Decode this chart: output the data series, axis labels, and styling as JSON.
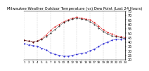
{
  "title": "Milwaukee Weather Outdoor Temperature (vs) Dew Point (Last 24 Hours)",
  "bg_color": "#ffffff",
  "plot_bg": "#ffffff",
  "grid_color": "#aaaaaa",
  "ylim": [
    20,
    75
  ],
  "yticks": [
    20,
    25,
    30,
    35,
    40,
    45,
    50,
    55,
    60,
    65,
    70,
    75
  ],
  "ylabel_fontsize": 3.5,
  "xlabel_fontsize": 3.0,
  "title_fontsize": 3.8,
  "temp_color": "#dd0000",
  "dew_color": "#0000cc",
  "outdoor_color": "#000000",
  "x_hours": [
    0,
    1,
    2,
    3,
    4,
    5,
    6,
    7,
    8,
    9,
    10,
    11,
    12,
    13,
    14,
    15,
    16,
    17,
    18,
    19,
    20,
    21,
    22,
    23
  ],
  "temp_y": [
    42,
    41,
    40,
    41,
    44,
    48,
    53,
    57,
    60,
    63,
    65,
    67,
    68,
    67,
    66,
    65,
    62,
    58,
    54,
    51,
    49,
    47,
    46,
    45
  ],
  "dew_y": [
    38,
    37,
    36,
    35,
    33,
    31,
    28,
    26,
    25,
    24,
    24,
    25,
    26,
    27,
    28,
    30,
    32,
    35,
    38,
    40,
    42,
    43,
    43,
    44
  ],
  "outdoor_y": [
    42,
    41,
    40,
    41,
    43,
    46,
    50,
    54,
    58,
    62,
    64,
    66,
    67,
    66,
    65,
    63,
    60,
    56,
    52,
    49,
    47,
    46,
    45,
    44
  ],
  "vline_positions": [
    0,
    3,
    6,
    9,
    12,
    15,
    18,
    21,
    23
  ]
}
